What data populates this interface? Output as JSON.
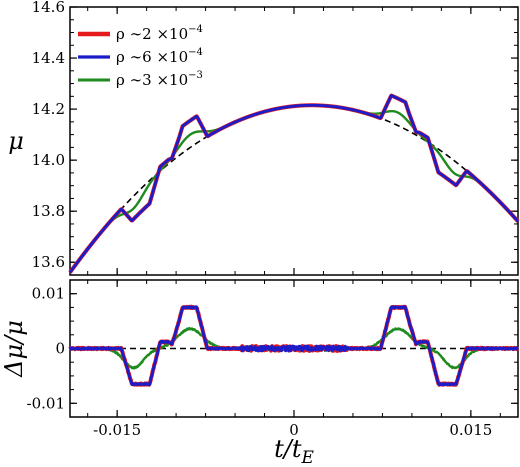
{
  "chart_data": [
    {
      "type": "line",
      "panel": "top",
      "ylabel": "μ",
      "xlabel": "",
      "xlim": [
        -0.019,
        0.019
      ],
      "ylim": [
        13.55,
        14.6
      ],
      "yticks": [
        13.6,
        13.8,
        14.0,
        14.2,
        14.4,
        14.6
      ],
      "ytick_labels": [
        "13.6",
        "13.8",
        "14.0",
        "14.2",
        "14.4",
        "14.6"
      ],
      "legend_position": "top-left",
      "baseline": {
        "style": "dashed",
        "color": "#000000",
        "peak": 14.215,
        "peak_t": 0.0015,
        "value_at_left_edge": 13.56,
        "value_at_right_edge": 13.76
      },
      "feature_t": [
        -0.0145,
        -0.0115,
        -0.009,
        -0.0073,
        0.0073,
        0.009,
        0.0115,
        0.0145
      ],
      "series": [
        {
          "name": "ρ∼2×10⁻⁴",
          "label_base": "ρ ∼2 ×10",
          "label_exp": "−4",
          "color": "#e41a1c",
          "width": 4.0,
          "features": [
            {
              "t": -0.0142,
              "dmu": -0.05
            },
            {
              "t": -0.0118,
              "dmu": 0.018
            },
            {
              "t": -0.0088,
              "dmu": 0.058
            },
            {
              "t": -0.0074,
              "dmu": -0.02
            },
            {
              "t": 0.0074,
              "dmu": -0.02
            },
            {
              "t": 0.0088,
              "dmu": 0.058
            },
            {
              "t": 0.0118,
              "dmu": 0.018
            },
            {
              "t": 0.0142,
              "dmu": -0.05
            }
          ]
        },
        {
          "name": "ρ∼6×10⁻⁴",
          "label_base": "ρ ∼6 ×10",
          "label_exp": "−4",
          "color": "#1c1cc8",
          "width": 2.8,
          "features": [
            {
              "t": -0.0142,
              "dmu": -0.05
            },
            {
              "t": -0.0118,
              "dmu": 0.018
            },
            {
              "t": -0.0088,
              "dmu": 0.058
            },
            {
              "t": -0.0074,
              "dmu": -0.02
            },
            {
              "t": 0.0074,
              "dmu": -0.02
            },
            {
              "t": 0.0088,
              "dmu": 0.058
            },
            {
              "t": 0.0118,
              "dmu": 0.018
            },
            {
              "t": 0.0142,
              "dmu": -0.05
            }
          ]
        },
        {
          "name": "ρ∼3×10⁻³",
          "label_base": "ρ ∼3 ×10",
          "label_exp": "−3",
          "color": "#1e8b1e",
          "width": 2.4,
          "features": [
            {
              "t": -0.0137,
              "dmu": -0.025
            },
            {
              "t": -0.0085,
              "dmu": 0.038
            },
            {
              "t": 0.0085,
              "dmu": 0.038
            },
            {
              "t": 0.0137,
              "dmu": -0.025
            }
          ]
        }
      ]
    },
    {
      "type": "line",
      "panel": "bottom",
      "ylabel": "Δμ/μ",
      "xlabel": "t/t_E",
      "xlabel_main": "t/t",
      "xlabel_sub": "E",
      "xlim": [
        -0.019,
        0.019
      ],
      "ylim": [
        -0.0125,
        0.0125
      ],
      "xticks": [
        -0.015,
        0,
        0.015
      ],
      "xtick_labels": [
        "-0.015",
        "0",
        "0.015"
      ],
      "yticks": [
        -0.01,
        0,
        0.01
      ],
      "ytick_labels": [
        "-0.01",
        "0",
        "0.01"
      ],
      "zero_line": {
        "style": "dashed",
        "color": "#000000"
      },
      "series": [
        {
          "name": "ρ∼2×10⁻⁴",
          "color": "#e41a1c",
          "width": 4.0,
          "segments": [
            {
              "t0": -0.0142,
              "t1": -0.0118,
              "y": -0.0065
            },
            {
              "t0": -0.0118,
              "t1": -0.0102,
              "y": 0.0012
            },
            {
              "t0": -0.0099,
              "t1": -0.0078,
              "y": 0.0075
            },
            {
              "t0": 0.0078,
              "t1": 0.0099,
              "y": 0.0075
            },
            {
              "t0": 0.0102,
              "t1": 0.0118,
              "y": 0.0012
            },
            {
              "t0": 0.0118,
              "t1": 0.0142,
              "y": -0.0065
            }
          ]
        },
        {
          "name": "ρ∼6×10⁻⁴",
          "color": "#1c1cc8",
          "width": 2.8,
          "segments": [
            {
              "t0": -0.0142,
              "t1": -0.0118,
              "y": -0.0065
            },
            {
              "t0": -0.0118,
              "t1": -0.0102,
              "y": 0.0012
            },
            {
              "t0": -0.0099,
              "t1": -0.0078,
              "y": 0.0075
            },
            {
              "t0": 0.0078,
              "t1": 0.0099,
              "y": 0.0075
            },
            {
              "t0": 0.0102,
              "t1": 0.0118,
              "y": 0.0012
            },
            {
              "t0": 0.0118,
              "t1": 0.0142,
              "y": -0.0065
            }
          ]
        },
        {
          "name": "ρ∼3×10⁻³",
          "color": "#1e8b1e",
          "width": 2.4,
          "bumps": [
            {
              "t": -0.0136,
              "y": -0.0035,
              "w": 0.0012
            },
            {
              "t": -0.0088,
              "y": 0.0036,
              "w": 0.0015
            },
            {
              "t": 0.0088,
              "y": 0.0036,
              "w": 0.0015
            },
            {
              "t": 0.0136,
              "y": -0.0035,
              "w": 0.0012
            }
          ]
        }
      ]
    }
  ]
}
